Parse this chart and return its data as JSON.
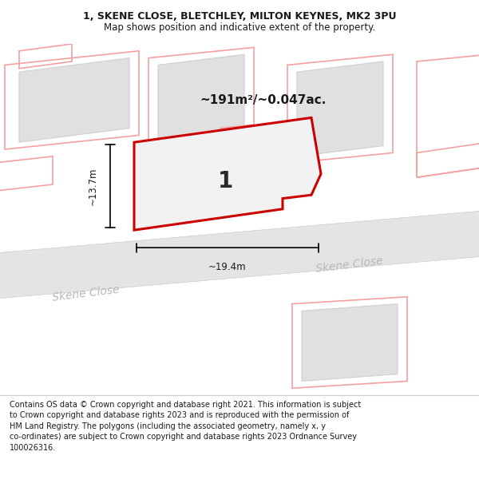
{
  "title_line1": "1, SKENE CLOSE, BLETCHLEY, MILTON KEYNES, MK2 3PU",
  "title_line2": "Map shows position and indicative extent of the property.",
  "footer_lines": [
    "Contains OS data © Crown copyright and database right 2021. This information is subject",
    "to Crown copyright and database rights 2023 and is reproduced with the permission of",
    "HM Land Registry. The polygons (including the associated geometry, namely x, y",
    "co-ordinates) are subject to Crown copyright and database rights 2023 Ordnance Survey",
    "100026316."
  ],
  "area_label": "~191m²/~0.047ac.",
  "width_label": "~19.4m",
  "height_label": "~13.7m",
  "plot_number": "1",
  "background_color": "#ffffff",
  "main_outline": "#cc0000",
  "main_fill": "#f2f2f2",
  "skene_close_label": "Skene Close",
  "skene_close_label2": "Skene Close",
  "road_fill": "#e8e8e8",
  "building_fill": "#e0e0e0",
  "pink_outline": "#f5a0a0",
  "map_xlim": [
    0,
    100
  ],
  "map_ylim": [
    0,
    100
  ]
}
